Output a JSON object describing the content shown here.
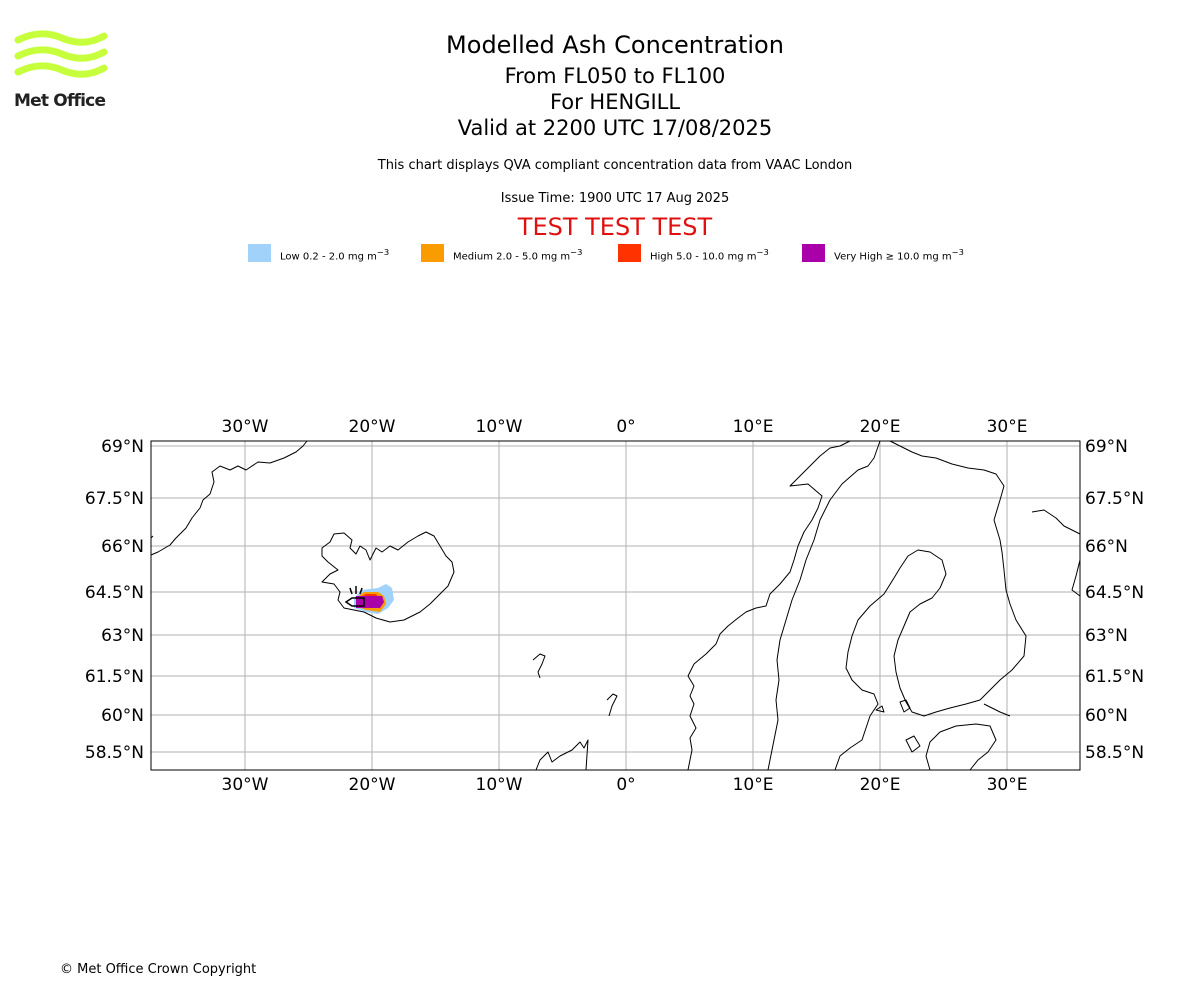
{
  "logo": {
    "text": "Met Office",
    "color": "#c8ff3c"
  },
  "title": {
    "main": "Modelled Ash Concentration",
    "levels": "From FL050 to FL100",
    "volcano": "For HENGILL",
    "valid": "Valid at 2200 UTC 17/08/2025"
  },
  "subtitle": "This chart displays QVA compliant concentration data from VAAC London",
  "issue_time": "Issue Time: 1900 UTC 17 Aug 2025",
  "test_banner": "TEST TEST TEST",
  "legend": [
    {
      "label": "Low 0.2 - 2.0 mg m",
      "color": "#a0d2fa"
    },
    {
      "label": "Medium 2.0 - 5.0 mg m",
      "color": "#fa9b00"
    },
    {
      "label": "High 5.0 - 10.0 mg m",
      "color": "#ff3200"
    },
    {
      "label": "Very High ≥ 10.0 mg m",
      "color": "#aa00aa"
    }
  ],
  "legend_unit_exp": "−3",
  "map": {
    "lon_ticks": [
      "30°W",
      "20°W",
      "10°W",
      "0°",
      "10°E",
      "20°E",
      "30°E"
    ],
    "lat_ticks": [
      "69°N",
      "67.5°N",
      "66°N",
      "64.5°N",
      "63°N",
      "61.5°N",
      "60°N",
      "58.5°N"
    ]
  },
  "copyright": "© Met Office Crown Copyright"
}
